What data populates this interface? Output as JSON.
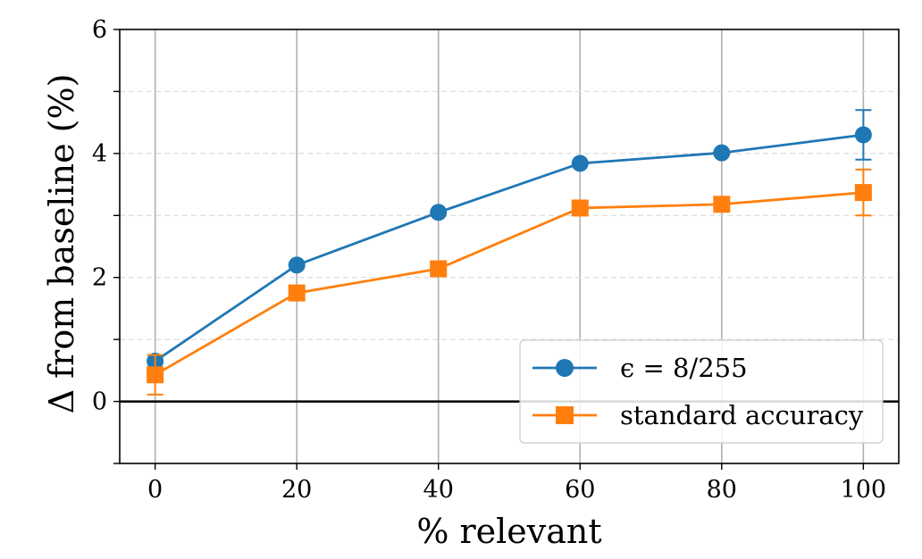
{
  "chart_data": {
    "type": "line",
    "xlabel": "% relevant",
    "ylabel": "Δ from baseline (%)",
    "x": [
      0,
      20,
      40,
      60,
      80,
      100
    ],
    "xlim": [
      -5,
      105
    ],
    "ylim": [
      -1,
      6
    ],
    "xticks": [
      "0",
      "20",
      "40",
      "60",
      "80",
      "100"
    ],
    "yticks": [
      "0",
      "2",
      "4",
      "6"
    ],
    "grid": "vertical solid + dashed horizontal",
    "legend_position": "lower-right",
    "series": [
      {
        "name": "ϵ = 8/255",
        "color": "#1f77b4",
        "marker": "circle",
        "values": [
          0.65,
          2.2,
          3.05,
          3.84,
          4.01,
          4.3
        ],
        "errors": [
          0.1,
          0,
          0,
          0,
          0,
          0.4
        ]
      },
      {
        "name": "standard accuracy",
        "color": "#ff7f0e",
        "marker": "square",
        "values": [
          0.43,
          1.75,
          2.14,
          3.12,
          3.18,
          3.37
        ],
        "errors": [
          0.32,
          0,
          0,
          0,
          0,
          0.37
        ]
      }
    ]
  }
}
